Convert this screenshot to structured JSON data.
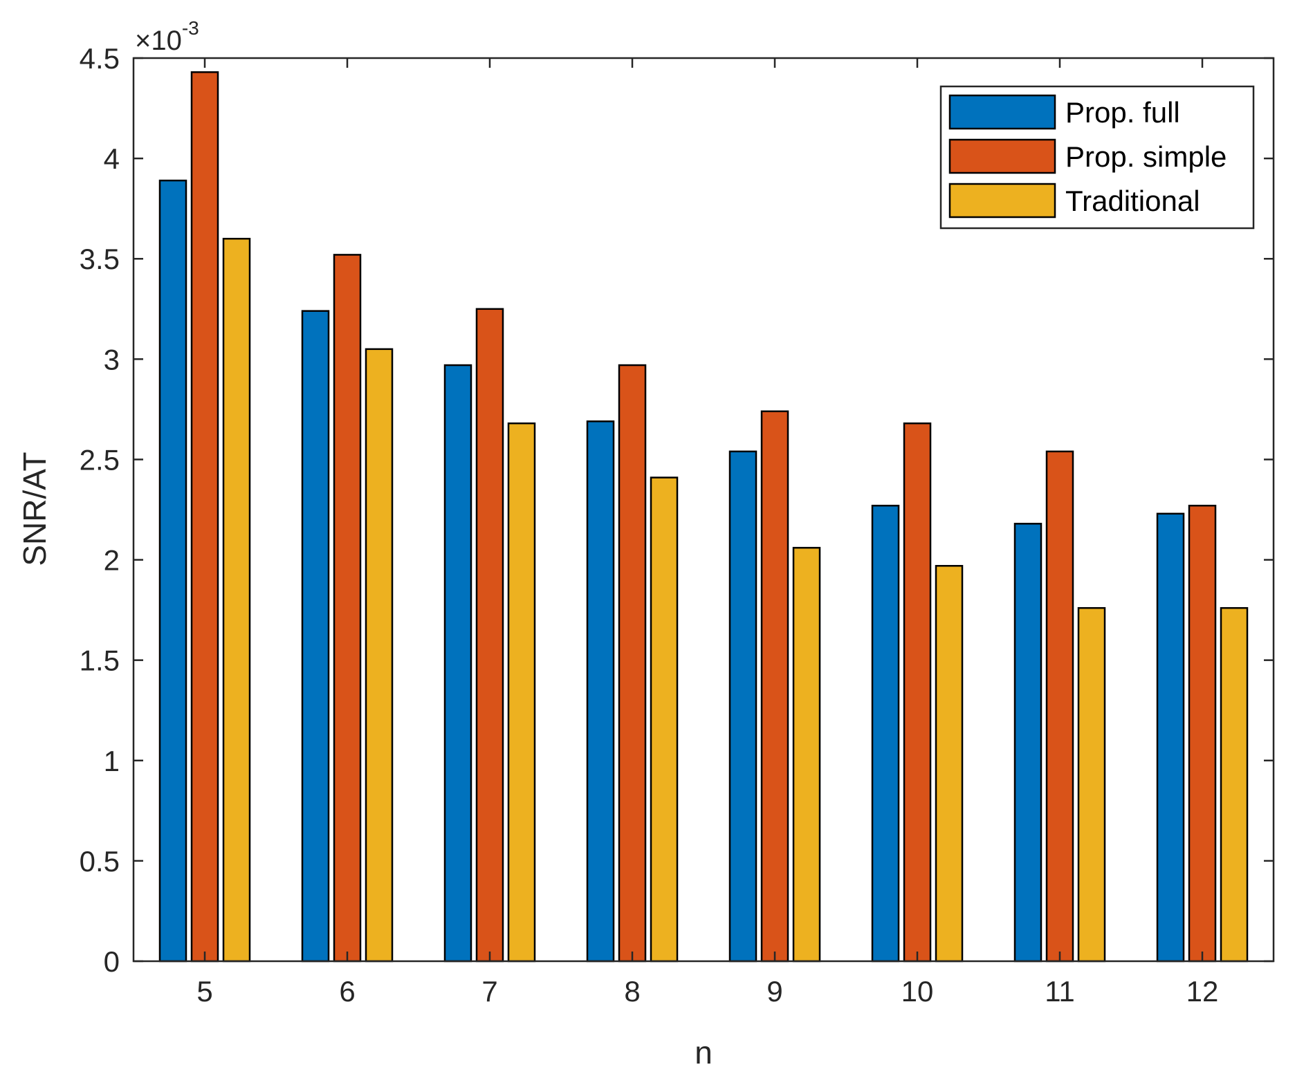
{
  "chart_data": {
    "type": "bar",
    "xlabel": "n",
    "ylabel": "SNR/AT",
    "multiplier": {
      "base": "×10",
      "exponent": "-3"
    },
    "categories": [
      "5",
      "6",
      "7",
      "8",
      "9",
      "10",
      "11",
      "12"
    ],
    "ylim": [
      0,
      4.5
    ],
    "yticks": [
      0,
      0.5,
      1,
      1.5,
      2,
      2.5,
      3,
      3.5,
      4,
      4.5
    ],
    "ytick_labels": [
      "0",
      "0.5",
      "1",
      "1.5",
      "2",
      "2.5",
      "3",
      "3.5",
      "4",
      "4.5"
    ],
    "grid": false,
    "legend_position": "top-right",
    "series": [
      {
        "name": "Prop. full",
        "color": "#0072BD",
        "values": [
          3.89,
          3.24,
          2.97,
          2.69,
          2.54,
          2.27,
          2.18,
          2.23
        ]
      },
      {
        "name": "Prop. simple",
        "color": "#D95319",
        "values": [
          4.43,
          3.52,
          3.25,
          2.97,
          2.74,
          2.68,
          2.54,
          2.27
        ]
      },
      {
        "name": "Traditional",
        "color": "#EDB120",
        "values": [
          3.6,
          3.05,
          2.68,
          2.41,
          2.06,
          1.97,
          1.76,
          1.76
        ]
      }
    ]
  }
}
